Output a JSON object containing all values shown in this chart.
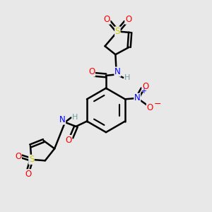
{
  "background_color": "#e8e8e8",
  "atom_colors": {
    "C": "#000000",
    "H": "#70a0a0",
    "N": "#0000ff",
    "O": "#ff0000",
    "S": "#cccc00"
  },
  "bond_color": "#000000",
  "bond_width": 1.8,
  "figsize": [
    3.0,
    3.0
  ],
  "dpi": 100
}
